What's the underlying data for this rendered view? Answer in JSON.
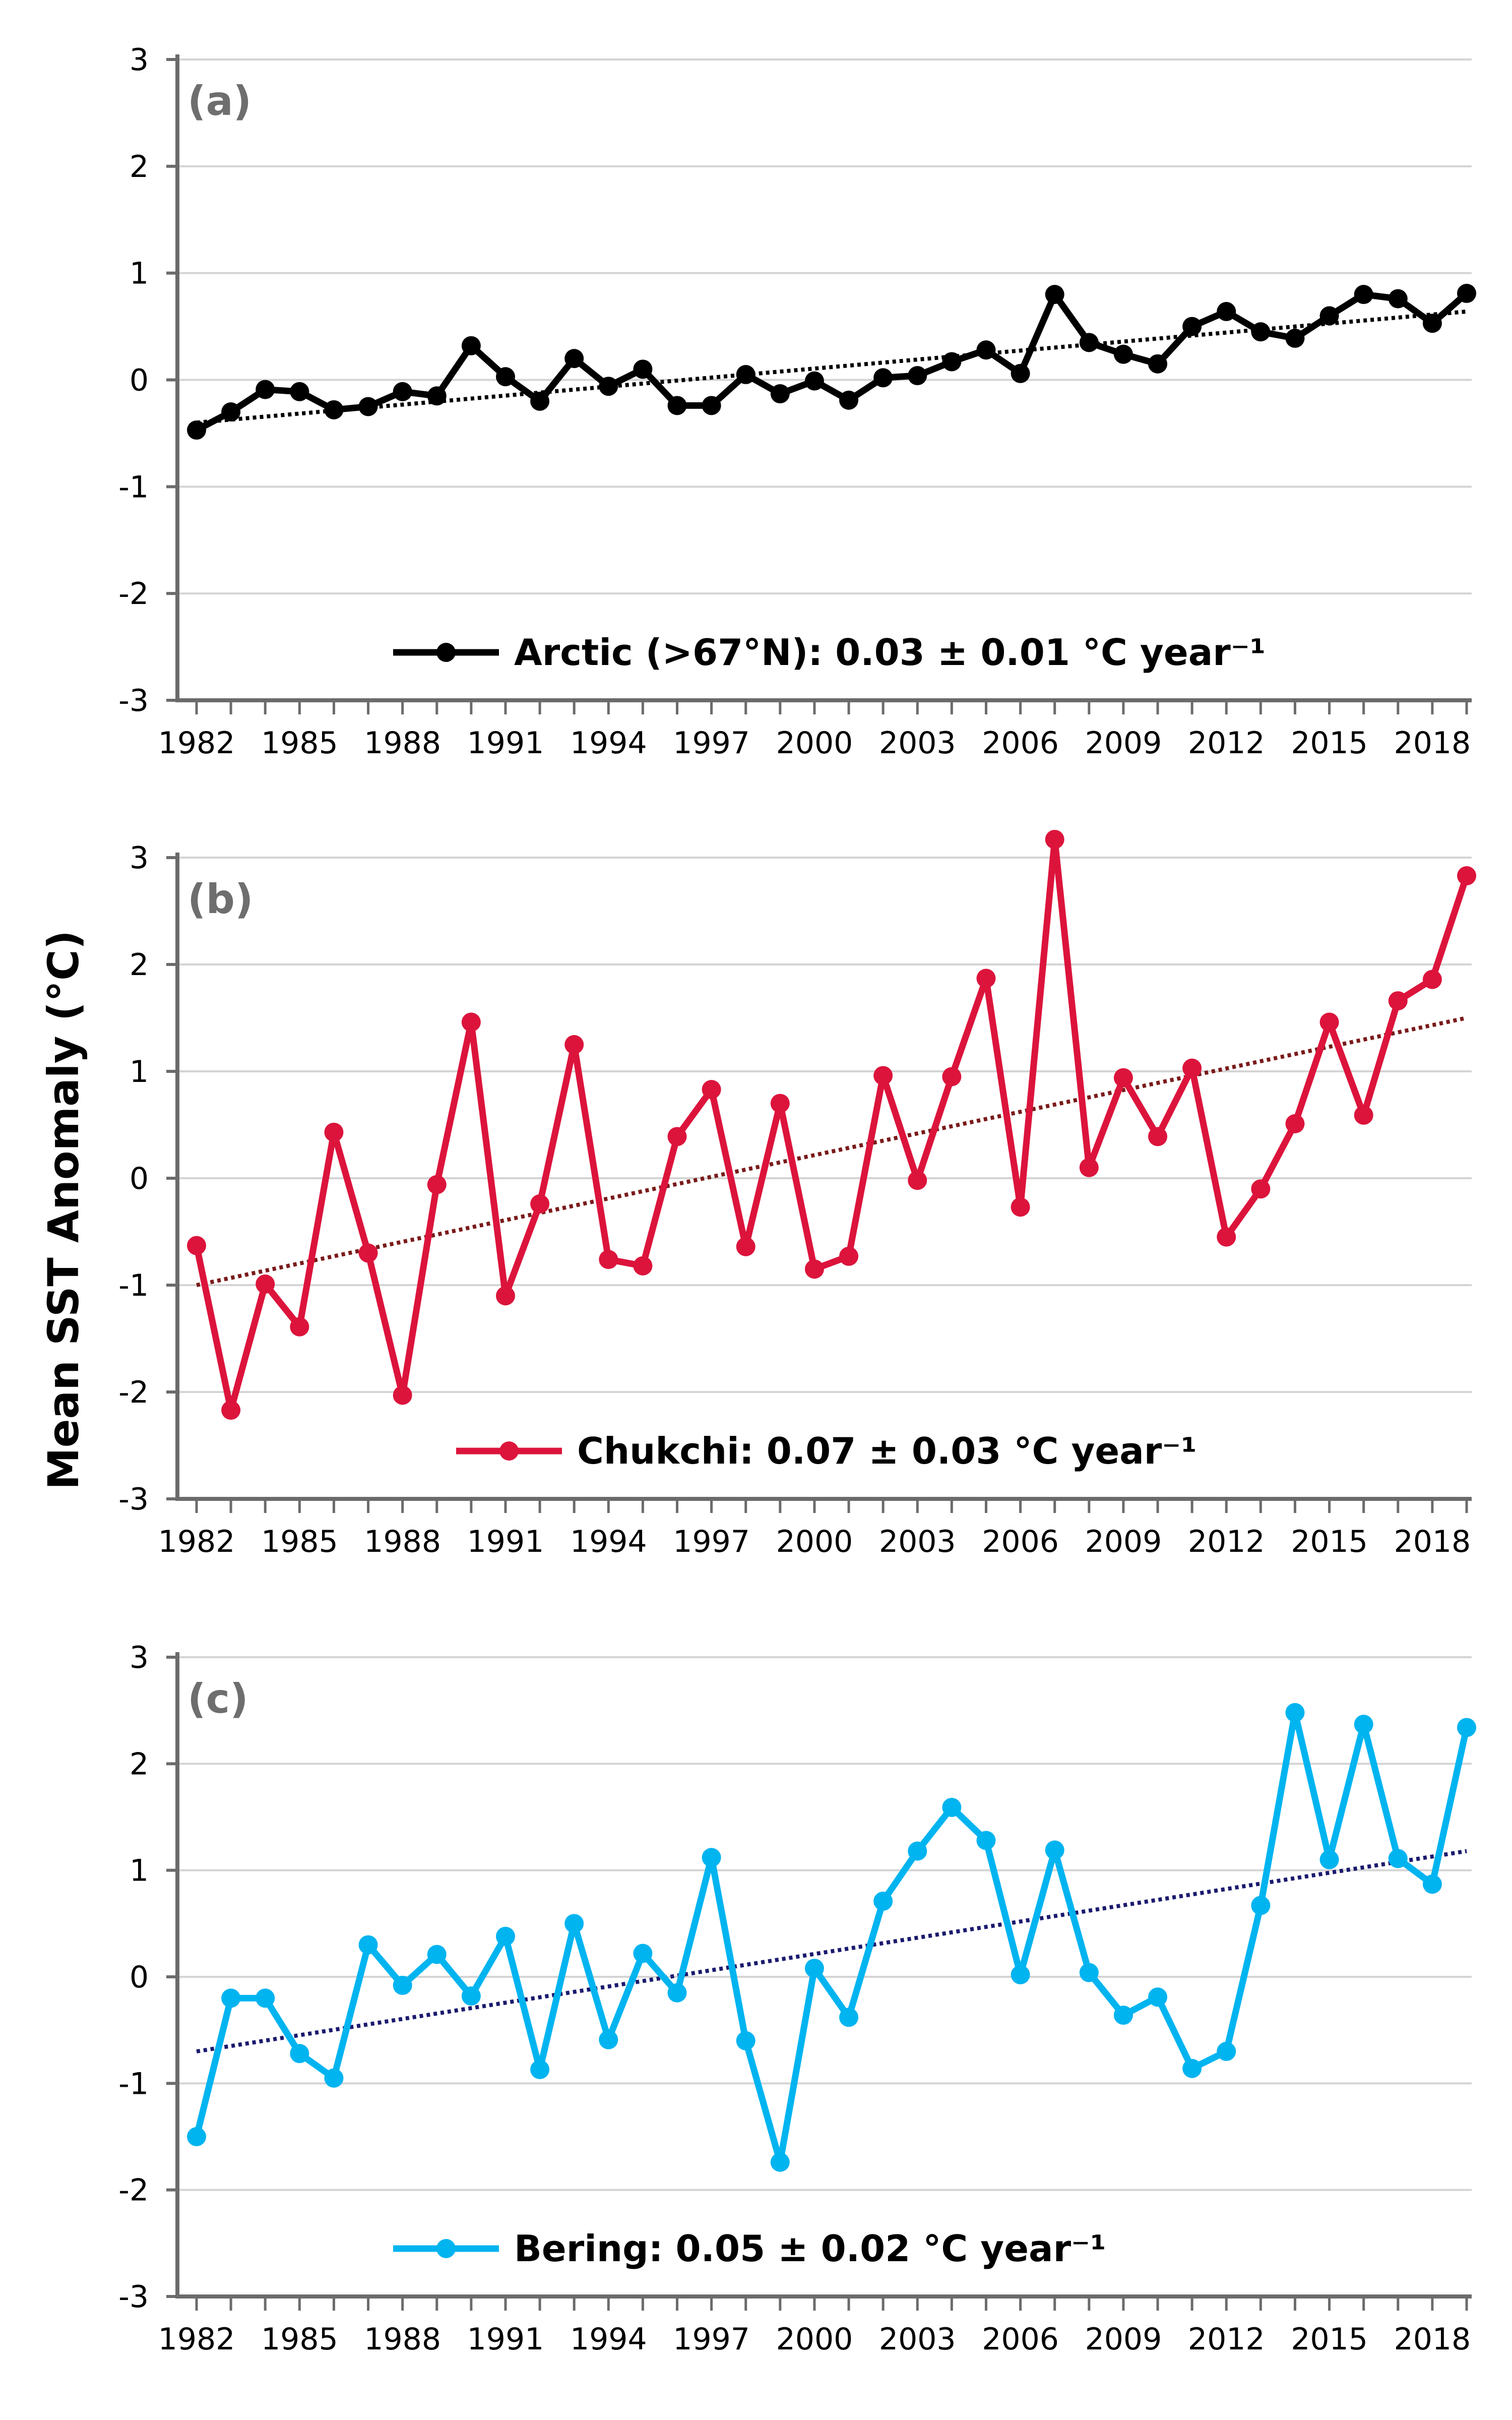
{
  "figure": {
    "ylabel": "Mean SST Anomaly (°C)"
  },
  "chart_data": [
    {
      "type": "line",
      "panel": "(a)",
      "x": [
        1982,
        1983,
        1984,
        1985,
        1986,
        1987,
        1988,
        1989,
        1990,
        1991,
        1992,
        1993,
        1994,
        1995,
        1996,
        1997,
        1998,
        1999,
        2000,
        2001,
        2002,
        2003,
        2004,
        2005,
        2006,
        2007,
        2008,
        2009,
        2010,
        2011,
        2012,
        2013,
        2014,
        2015,
        2016,
        2017,
        2018,
        2019
      ],
      "series": [
        {
          "name": "Arctic (>67°N): 0.03 ± 0.01 °C year⁻¹",
          "color": "#000000",
          "values": [
            -0.47,
            -0.3,
            -0.09,
            -0.11,
            -0.28,
            -0.25,
            -0.11,
            -0.15,
            0.32,
            0.03,
            -0.2,
            0.2,
            -0.06,
            0.1,
            -0.24,
            -0.24,
            0.05,
            -0.13,
            -0.01,
            -0.19,
            0.02,
            0.04,
            0.17,
            0.28,
            0.06,
            0.8,
            0.35,
            0.24,
            0.15,
            0.5,
            0.64,
            0.45,
            0.39,
            0.6,
            0.8,
            0.76,
            0.53,
            0.81
          ]
        }
      ],
      "trend": {
        "start": -0.4,
        "end": 0.64,
        "color": "#000000",
        "style": "dotted"
      },
      "xticks": [
        "1982",
        "1985",
        "1988",
        "1991",
        "1994",
        "1997",
        "2000",
        "2003",
        "2006",
        "2009",
        "2012",
        "2015",
        "2018"
      ],
      "yticks": [
        "3",
        "2",
        "1",
        "0",
        "-1",
        "-2",
        "-3"
      ],
      "ylim": [
        -3,
        3
      ],
      "grid": true,
      "legend_position": "bottom-center"
    },
    {
      "type": "line",
      "panel": "(b)",
      "x": [
        1982,
        1983,
        1984,
        1985,
        1986,
        1987,
        1988,
        1989,
        1990,
        1991,
        1992,
        1993,
        1994,
        1995,
        1996,
        1997,
        1998,
        1999,
        2000,
        2001,
        2002,
        2003,
        2004,
        2005,
        2006,
        2007,
        2008,
        2009,
        2010,
        2011,
        2012,
        2013,
        2014,
        2015,
        2016,
        2017,
        2018,
        2019
      ],
      "series": [
        {
          "name": "Chukchi: 0.07 ± 0.03 °C year⁻¹",
          "color": "#dc143c",
          "values": [
            -0.63,
            -2.17,
            -0.99,
            -1.39,
            0.43,
            -0.7,
            -2.03,
            -0.06,
            1.46,
            -1.1,
            -0.24,
            1.25,
            -0.76,
            -0.82,
            0.39,
            0.83,
            -0.64,
            0.7,
            -0.85,
            -0.73,
            0.96,
            -0.02,
            0.95,
            1.87,
            -0.27,
            3.17,
            0.1,
            0.94,
            0.39,
            1.03,
            -0.55,
            -0.1,
            0.51,
            1.46,
            0.59,
            1.66,
            1.86,
            2.83
          ]
        }
      ],
      "trend": {
        "start": -1.0,
        "end": 1.5,
        "color": "#7a1a1a",
        "style": "dotted"
      },
      "xticks": [
        "1982",
        "1985",
        "1988",
        "1991",
        "1994",
        "1997",
        "2000",
        "2003",
        "2006",
        "2009",
        "2012",
        "2015",
        "2018"
      ],
      "yticks": [
        "3",
        "2",
        "1",
        "0",
        "-1",
        "-2",
        "-3"
      ],
      "ylim": [
        -3,
        3
      ],
      "grid": true,
      "legend_position": "bottom-center"
    },
    {
      "type": "line",
      "panel": "(c)",
      "x": [
        1982,
        1983,
        1984,
        1985,
        1986,
        1987,
        1988,
        1989,
        1990,
        1991,
        1992,
        1993,
        1994,
        1995,
        1996,
        1997,
        1998,
        1999,
        2000,
        2001,
        2002,
        2003,
        2004,
        2005,
        2006,
        2007,
        2008,
        2009,
        2010,
        2011,
        2012,
        2013,
        2014,
        2015,
        2016,
        2017,
        2018,
        2019
      ],
      "series": [
        {
          "name": "Bering: 0.05 ± 0.02 °C year⁻¹",
          "color": "#00b4f0",
          "values": [
            -1.5,
            -0.2,
            -0.2,
            -0.72,
            -0.95,
            0.3,
            -0.08,
            0.21,
            -0.18,
            0.38,
            -0.87,
            0.5,
            -0.59,
            0.22,
            -0.15,
            1.12,
            -0.6,
            -1.74,
            0.08,
            -0.38,
            0.71,
            1.18,
            1.59,
            1.28,
            0.02,
            1.19,
            0.04,
            -0.36,
            -0.19,
            -0.86,
            -0.7,
            0.67,
            2.48,
            1.1,
            2.37,
            1.11,
            0.87,
            2.34
          ]
        }
      ],
      "trend": {
        "start": -0.7,
        "end": 1.18,
        "color": "#1a1a6e",
        "style": "dotted"
      },
      "xticks": [
        "1982",
        "1985",
        "1988",
        "1991",
        "1994",
        "1997",
        "2000",
        "2003",
        "2006",
        "2009",
        "2012",
        "2015",
        "2018"
      ],
      "yticks": [
        "3",
        "2",
        "1",
        "0",
        "-1",
        "-2",
        "-3"
      ],
      "ylim": [
        -3,
        3
      ],
      "grid": true,
      "legend_position": "bottom-center"
    }
  ]
}
